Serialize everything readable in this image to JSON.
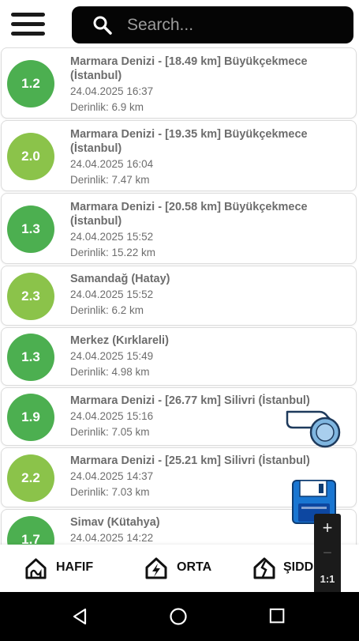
{
  "search": {
    "placeholder": "Search..."
  },
  "quakes": [
    {
      "magnitude": "1.2",
      "title": "Marmara Denizi - [18.49 km] Büyükçekmece (İstanbul)",
      "datetime": "24.04.2025 16:37",
      "depth": "Derinlik: 6.9 km",
      "color": "#4caf50"
    },
    {
      "magnitude": "2.0",
      "title": "Marmara Denizi - [19.35 km] Büyükçekmece (İstanbul)",
      "datetime": "24.04.2025 16:04",
      "depth": "Derinlik: 7.47 km",
      "color": "#8bc34a"
    },
    {
      "magnitude": "1.3",
      "title": "Marmara Denizi - [20.58 km] Büyükçekmece (İstanbul)",
      "datetime": "24.04.2025 15:52",
      "depth": "Derinlik: 15.22 km",
      "color": "#4caf50"
    },
    {
      "magnitude": "2.3",
      "title": "Samandağ (Hatay)",
      "datetime": "24.04.2025 15:52",
      "depth": "Derinlik: 6.2 km",
      "color": "#8bc34a"
    },
    {
      "magnitude": "1.3",
      "title": "Merkez (Kırklareli)",
      "datetime": "24.04.2025 15:49",
      "depth": "Derinlik: 4.98 km",
      "color": "#4caf50"
    },
    {
      "magnitude": "1.9",
      "title": "Marmara Denizi - [26.77 km] Silivri (İstanbul)",
      "datetime": "24.04.2025 15:16",
      "depth": "Derinlik: 7.05 km",
      "color": "#4caf50"
    },
    {
      "magnitude": "2.2",
      "title": "Marmara Denizi - [25.21 km] Silivri (İstanbul)",
      "datetime": "24.04.2025 14:37",
      "depth": "Derinlik: 7.03 km",
      "color": "#8bc34a"
    },
    {
      "magnitude": "1.7",
      "title": "Simav (Kütahya)",
      "datetime": "24.04.2025 14:22",
      "depth": "",
      "color": "#4caf50"
    }
  ],
  "tabs": [
    {
      "label": "HAFIF",
      "icon": "house-wave-icon"
    },
    {
      "label": "ORTA",
      "icon": "house-lightning-icon"
    },
    {
      "label": "ŞIDD",
      "icon": "house-crack-icon"
    }
  ],
  "zoom": {
    "plus": "+",
    "minus": "−",
    "ratio": "1:1"
  },
  "icons": {
    "menu": "hamburger-menu-icon",
    "search": "search-icon",
    "whistle": "whistle-icon",
    "save": "floppy-disk-icon"
  }
}
